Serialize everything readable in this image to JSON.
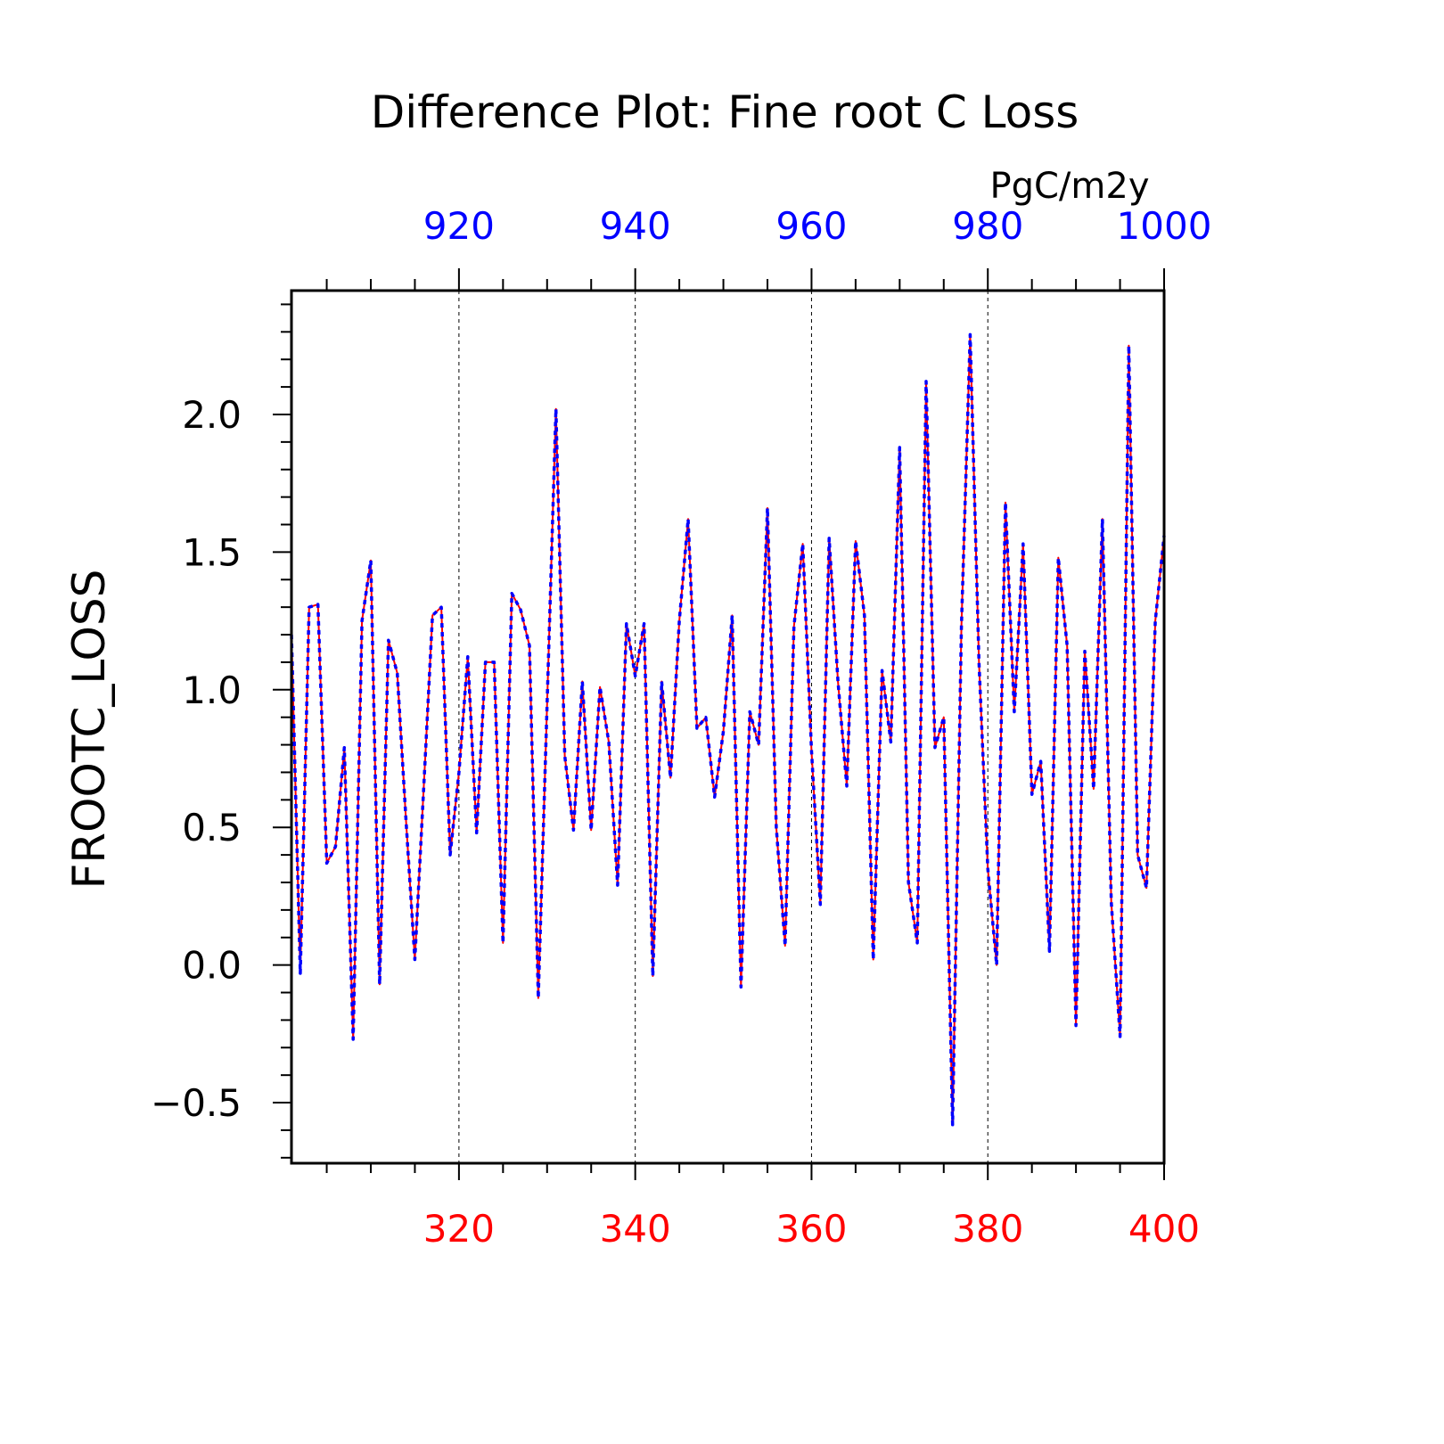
{
  "chart_data": {
    "type": "line",
    "title": "Difference Plot: Fine root C Loss",
    "units": "PgC/m2y",
    "ylabel": "FROOTC_LOSS",
    "xlabel": "",
    "xlim": [
      301,
      400
    ],
    "ylim": [
      -0.72,
      2.45
    ],
    "top_xlim": [
      901,
      1000
    ],
    "grid": "vertical dashed at major x ticks",
    "x_ticks": [
      320,
      340,
      360,
      380,
      400
    ],
    "x_tick_labels": [
      "320",
      "340",
      "360",
      "380",
      "400"
    ],
    "top_x_ticks": [
      920,
      940,
      960,
      980,
      1000
    ],
    "top_x_tick_labels": [
      "920",
      "940",
      "960",
      "980",
      "1000"
    ],
    "y_ticks": [
      -0.5,
      0.0,
      0.5,
      1.0,
      1.5,
      2.0
    ],
    "y_tick_labels": [
      "−0.5",
      "0.0",
      "0.5",
      "1.0",
      "1.5",
      "2.0"
    ],
    "colors": {
      "bottom_axis": "#ff0000",
      "top_axis": "#0000ff",
      "frame": "#000000"
    },
    "x": [
      301,
      302,
      303,
      304,
      305,
      306,
      307,
      308,
      309,
      310,
      311,
      312,
      313,
      314,
      315,
      316,
      317,
      318,
      319,
      320,
      321,
      322,
      323,
      324,
      325,
      326,
      327,
      328,
      329,
      330,
      331,
      332,
      333,
      334,
      335,
      336,
      337,
      338,
      339,
      340,
      341,
      342,
      343,
      344,
      345,
      346,
      347,
      348,
      349,
      350,
      351,
      352,
      353,
      354,
      355,
      356,
      357,
      358,
      359,
      360,
      361,
      362,
      363,
      364,
      365,
      366,
      367,
      368,
      369,
      370,
      371,
      372,
      373,
      374,
      375,
      376,
      377,
      378,
      379,
      380,
      381,
      382,
      383,
      384,
      385,
      386,
      387,
      388,
      389,
      390,
      391,
      392,
      393,
      394,
      395,
      396,
      397,
      398,
      399,
      400
    ],
    "series": [
      {
        "color": "#ff0000",
        "style": "solid",
        "values": [
          1.2,
          -0.03,
          1.3,
          1.31,
          0.37,
          0.43,
          0.79,
          -0.27,
          1.25,
          1.47,
          -0.07,
          1.18,
          1.06,
          0.52,
          0.02,
          0.64,
          1.27,
          1.3,
          0.4,
          0.7,
          1.12,
          0.48,
          1.1,
          1.1,
          0.08,
          1.35,
          1.29,
          1.16,
          -0.12,
          0.95,
          2.02,
          0.76,
          0.49,
          1.03,
          0.49,
          1.01,
          0.81,
          0.29,
          1.24,
          1.05,
          1.24,
          -0.04,
          1.03,
          0.68,
          1.25,
          1.62,
          0.86,
          0.9,
          0.61,
          0.85,
          1.27,
          -0.08,
          0.92,
          0.8,
          1.66,
          0.5,
          0.07,
          1.23,
          1.53,
          0.78,
          0.22,
          1.55,
          1.03,
          0.65,
          1.54,
          1.27,
          0.02,
          1.07,
          0.81,
          1.88,
          0.3,
          0.08,
          2.12,
          0.79,
          0.9,
          -0.58,
          1.23,
          2.29,
          1.1,
          0.35,
          0.0,
          1.68,
          0.92,
          1.53,
          0.62,
          0.74,
          0.05,
          1.48,
          1.16,
          -0.22,
          1.14,
          0.64,
          1.62,
          0.23,
          -0.26,
          2.25,
          0.4,
          0.28,
          1.25,
          1.56
        ]
      },
      {
        "color": "#0000ff",
        "style": "dashed",
        "values": [
          1.2,
          -0.03,
          1.3,
          1.31,
          0.37,
          0.43,
          0.79,
          -0.27,
          1.25,
          1.47,
          -0.07,
          1.18,
          1.06,
          0.52,
          0.02,
          0.64,
          1.27,
          1.3,
          0.4,
          0.7,
          1.12,
          0.48,
          1.1,
          1.1,
          0.08,
          1.35,
          1.29,
          1.16,
          -0.12,
          0.95,
          2.02,
          0.76,
          0.49,
          1.03,
          0.49,
          1.01,
          0.81,
          0.29,
          1.24,
          1.05,
          1.24,
          -0.04,
          1.03,
          0.68,
          1.25,
          1.62,
          0.86,
          0.9,
          0.61,
          0.85,
          1.27,
          -0.08,
          0.92,
          0.8,
          1.66,
          0.5,
          0.07,
          1.23,
          1.53,
          0.78,
          0.22,
          1.55,
          1.03,
          0.65,
          1.54,
          1.27,
          0.02,
          1.07,
          0.81,
          1.88,
          0.3,
          0.08,
          2.12,
          0.79,
          0.9,
          -0.58,
          1.23,
          2.29,
          1.1,
          0.35,
          0.0,
          1.68,
          0.92,
          1.53,
          0.62,
          0.74,
          0.05,
          1.48,
          1.16,
          -0.22,
          1.14,
          0.64,
          1.62,
          0.23,
          -0.26,
          2.25,
          0.4,
          0.28,
          1.25,
          1.56
        ]
      }
    ]
  }
}
